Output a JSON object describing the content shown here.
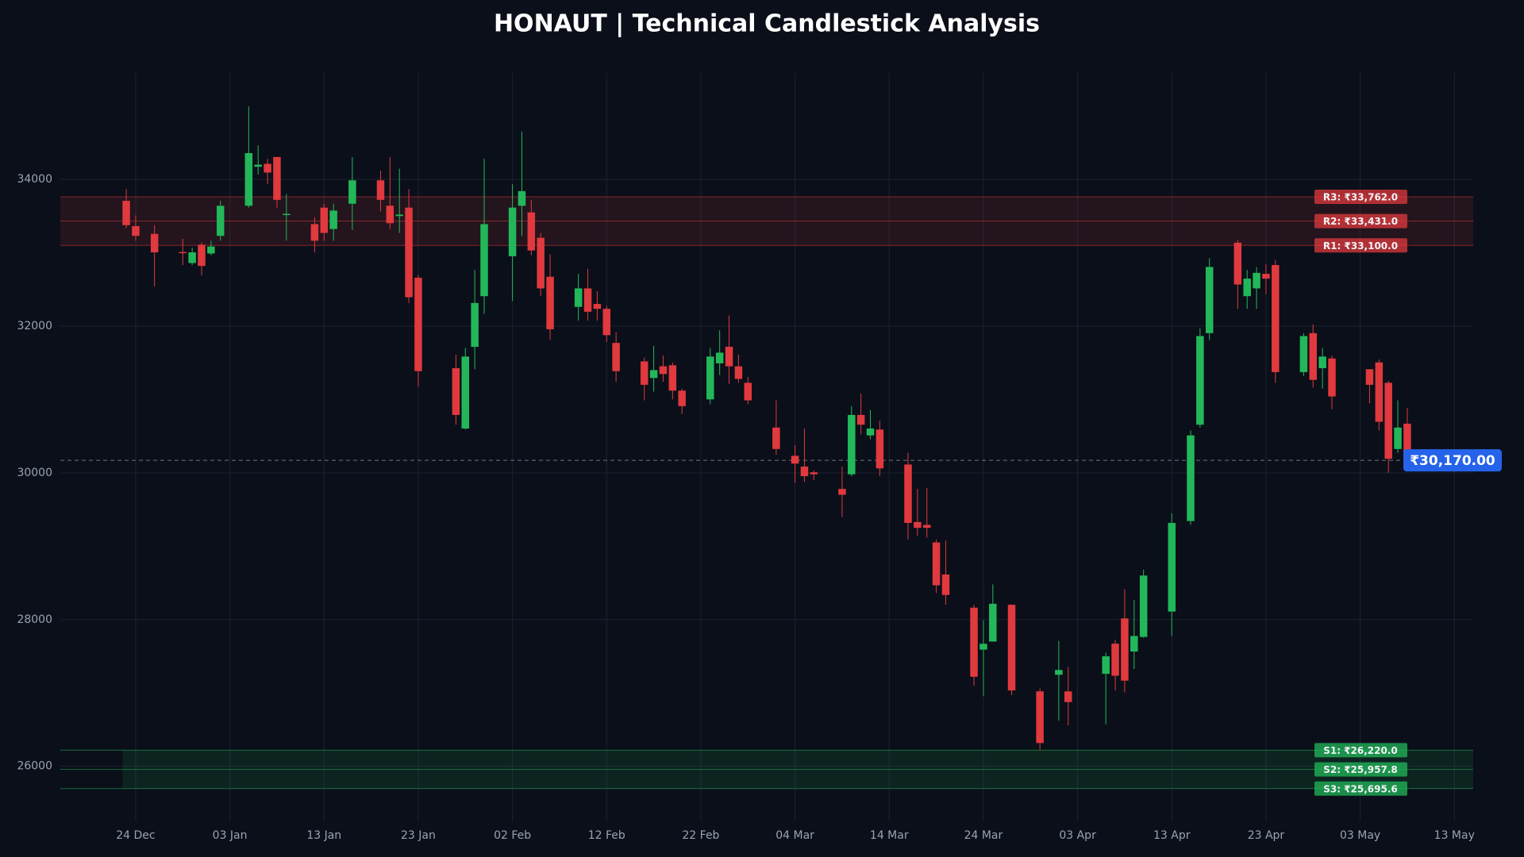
{
  "chart_data": {
    "type": "candlestick",
    "title": "HONAUT | Technical Candlestick Analysis",
    "x": [
      "23 Dec",
      "24 Dec",
      "26 Dec",
      "29 Dec",
      "30 Dec",
      "31 Dec",
      "01 Jan",
      "02 Jan",
      "05 Jan",
      "06 Jan",
      "07 Jan",
      "08 Jan",
      "09 Jan",
      "12 Jan",
      "13 Jan",
      "14 Jan",
      "16 Jan",
      "19 Jan",
      "20 Jan",
      "21 Jan",
      "22 Jan",
      "23 Jan",
      "27 Jan",
      "28 Jan",
      "29 Jan",
      "30 Jan",
      "02 Feb",
      "03 Feb",
      "04 Feb",
      "05 Feb",
      "06 Feb",
      "09 Feb",
      "10 Feb",
      "11 Feb",
      "12 Feb",
      "13 Feb",
      "16 Feb",
      "17 Feb",
      "18 Feb",
      "19 Feb",
      "20 Feb",
      "23 Feb",
      "24 Feb",
      "25 Feb",
      "26 Feb",
      "27 Feb",
      "02 Mar",
      "04 Mar",
      "05 Mar",
      "06 Mar",
      "09 Mar",
      "10 Mar",
      "11 Mar",
      "12 Mar",
      "13 Mar",
      "16 Mar",
      "17 Mar",
      "18 Mar",
      "19 Mar",
      "20 Mar",
      "23 Mar",
      "24 Mar",
      "25 Mar",
      "27 Mar",
      "30 Mar",
      "01 Apr",
      "02 Apr",
      "06 Apr",
      "07 Apr",
      "08 Apr",
      "09 Apr",
      "10 Apr",
      "13 Apr",
      "15 Apr",
      "16 Apr",
      "17 Apr",
      "20 Apr",
      "21 Apr",
      "22 Apr",
      "23 Apr",
      "24 Apr",
      "27 Apr",
      "28 Apr",
      "29 Apr",
      "30 Apr",
      "04 May",
      "05 May",
      "06 May",
      "07 May",
      "08 May"
    ],
    "open": [
      33708,
      33363,
      33257,
      33010,
      32860,
      33110,
      32990,
      33230,
      33640,
      34172,
      34212,
      34305,
      33520,
      33390,
      33615,
      33323,
      33668,
      33987,
      33641,
      33500,
      33615,
      32660,
      31426,
      30604,
      31718,
      32408,
      32952,
      33640,
      33550,
      33204,
      32673,
      32262,
      32514,
      32302,
      32235,
      31771,
      31519,
      31293,
      31453,
      31466,
      31120,
      31001,
      31492,
      31718,
      31452,
      31227,
      30617,
      30232,
      30086,
      30007,
      29781,
      29980,
      30789,
      30510,
      30590,
      30113,
      29330,
      29290,
      29051,
      28614,
      28162,
      27590,
      27700,
      28202,
      27021,
      27247,
      27021,
      27260,
      27671,
      28016,
      27564,
      27763,
      28109,
      29343,
      30656,
      31904,
      33137,
      32408,
      32514,
      32713,
      32832,
      31373,
      31904,
      31426,
      31559,
      31412,
      31505,
      31227,
      30325,
      30670
    ],
    "high": [
      33867,
      33510,
      33376,
      33190,
      33070,
      33140,
      33164,
      33708,
      34995,
      34464,
      34280,
      34305,
      33801,
      33483,
      33668,
      33668,
      34305,
      34120,
      34305,
      34146,
      33867,
      32700,
      31612,
      31704,
      32766,
      34280,
      33934,
      34650,
      33721,
      33270,
      32978,
      32713,
      32780,
      32474,
      32275,
      31917,
      31572,
      31731,
      31598,
      31505,
      31147,
      31704,
      31943,
      32143,
      31612,
      31307,
      30988,
      30378,
      30604,
      30033,
      30086,
      30908,
      31081,
      30855,
      30710,
      30272,
      29781,
      29794,
      29091,
      29078,
      28202,
      27988,
      28480,
      28202,
      27060,
      27710,
      27353,
      27550,
      27724,
      28414,
      28268,
      28680,
      29450,
      30577,
      31970,
      32925,
      33177,
      32766,
      32806,
      32846,
      32899,
      31904,
      32023,
      31704,
      31598,
      31412,
      31545,
      31253,
      30988,
      30882
    ],
    "low": [
      33336,
      33164,
      32540,
      32830,
      32830,
      32690,
      32965,
      33164,
      33615,
      34066,
      33934,
      33615,
      33164,
      33005,
      33164,
      33164,
      33310,
      33562,
      33323,
      33270,
      32315,
      31175,
      30656,
      30590,
      31412,
      32170,
      32342,
      33230,
      32965,
      32408,
      31810,
      32076,
      32076,
      32076,
      31784,
      31240,
      30988,
      31108,
      31240,
      31001,
      30802,
      30935,
      31333,
      31213,
      31227,
      30935,
      30245,
      29860,
      29874,
      29900,
      29396,
      29954,
      30524,
      30457,
      29954,
      29091,
      29144,
      29118,
      28361,
      28202,
      27100,
      26955,
      27700,
      26968,
      26224,
      26623,
      26557,
      26571,
      27034,
      27008,
      27327,
      27750,
      27776,
      29290,
      30617,
      31810,
      32235,
      32235,
      32235,
      32435,
      31227,
      31320,
      31161,
      31147,
      30868,
      30948,
      30577,
      30000,
      30272,
      30150
    ],
    "close": [
      33376,
      33230,
      33005,
      32995,
      33005,
      32820,
      33085,
      33640,
      34358,
      34200,
      34093,
      33721,
      33530,
      33164,
      33270,
      33575,
      33987,
      33721,
      33403,
      33520,
      32394,
      31386,
      30789,
      31585,
      32315,
      33390,
      33615,
      33840,
      33031,
      32514,
      31957,
      32514,
      32196,
      32235,
      31877,
      31386,
      31200,
      31400,
      31346,
      31120,
      30908,
      31585,
      31638,
      31452,
      31280,
      30988,
      30325,
      30126,
      29954,
      29980,
      29701,
      30789,
      30656,
      30604,
      30060,
      29317,
      29250,
      29250,
      28467,
      28335,
      27220,
      27670,
      28215,
      27034,
      26317,
      27313,
      26875,
      27499,
      27234,
      27167,
      27776,
      28600,
      29317,
      30510,
      31864,
      32806,
      32567,
      32647,
      32726,
      32647,
      31373,
      31864,
      31267,
      31585,
      31041,
      31200,
      30696,
      30192,
      30617,
      30170
    ],
    "up_color": "#22b85a",
    "down_color": "#e0393e",
    "resistance": [
      {
        "value": 33762.0,
        "label": "R3: ₹33,762.0"
      },
      {
        "value": 33431.0,
        "label": "R2: ₹33,431.0"
      },
      {
        "value": 33100.0,
        "label": "R1: ₹33,100.0"
      }
    ],
    "support": [
      {
        "value": 26220.0,
        "label": "S1: ₹26,220.0"
      },
      {
        "value": 25957.8,
        "label": "S2: ₹25,957.8"
      },
      {
        "value": 25695.6,
        "label": "S3: ₹25,695.6"
      }
    ],
    "last_price": {
      "value": 30170.0,
      "label": "₹30,170.00"
    },
    "xlim": [
      "16 Dec",
      "15 May"
    ],
    "ylim": [
      25250,
      35450
    ],
    "xticks": [
      "24 Dec",
      "03 Jan",
      "13 Jan",
      "23 Jan",
      "02 Feb",
      "12 Feb",
      "22 Feb",
      "04 Mar",
      "14 Mar",
      "24 Mar",
      "03 Apr",
      "13 Apr",
      "23 Apr",
      "03 May",
      "13 May"
    ],
    "yticks": [
      26000,
      28000,
      30000,
      32000,
      34000
    ],
    "grid": true
  }
}
